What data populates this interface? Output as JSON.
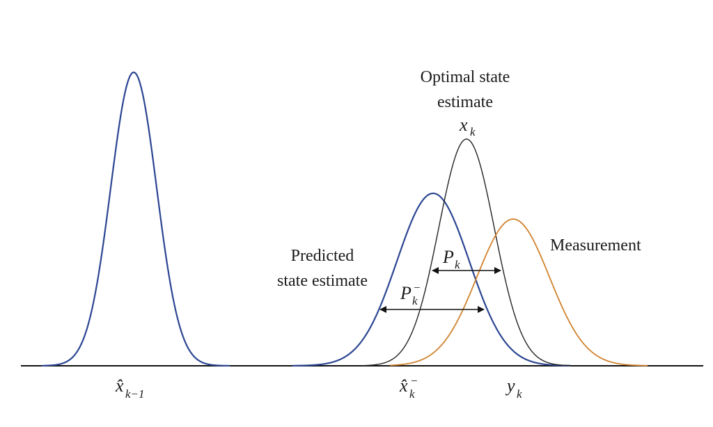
{
  "colors": {
    "prior": "#2b4592",
    "predicted": "#2b4592",
    "optimal": "#222222",
    "measurement": "#d0822d",
    "axis": "#111111",
    "arrow": "#111111"
  },
  "labels": {
    "optimal_line1": "Optimal state",
    "optimal_line2": "estimate",
    "optimal_symbol": "x",
    "optimal_subscript": "k",
    "predicted_line1": "Predicted",
    "predicted_line2": "state estimate",
    "measurement": "Measurement",
    "pk_symbol": "P",
    "pk_subscript": "k",
    "pk_minus_symbol": "P",
    "pk_minus_subscript": "k",
    "pk_minus_superscript": "−",
    "tick_prev_symbol": "x̂",
    "tick_prev_subscript": "k−1",
    "tick_pred_symbol": "x̂",
    "tick_pred_subscript": "k",
    "tick_pred_superscript": "−",
    "tick_meas_symbol": "y",
    "tick_meas_subscript": "k"
  },
  "icons": {
    "arrow_head": "double-arrow-icon"
  }
}
